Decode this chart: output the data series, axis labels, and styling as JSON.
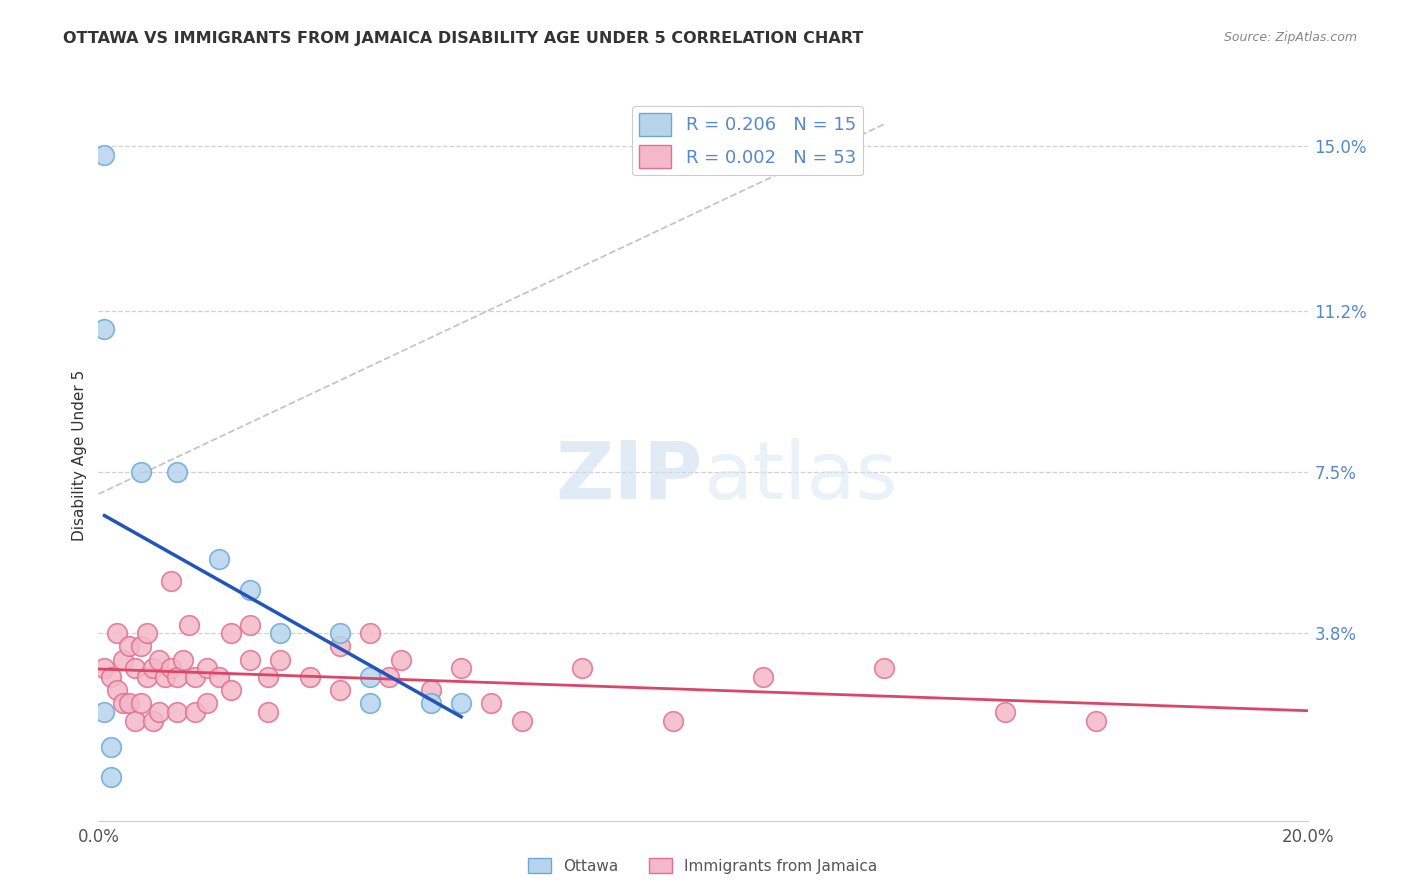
{
  "title": "OTTAWA VS IMMIGRANTS FROM JAMAICA DISABILITY AGE UNDER 5 CORRELATION CHART",
  "source": "Source: ZipAtlas.com",
  "ylabel": "Disability Age Under 5",
  "xlim": [
    0.0,
    0.2
  ],
  "ylim": [
    -0.005,
    0.163
  ],
  "xticks": [
    0.0,
    0.2
  ],
  "xticklabels": [
    "0.0%",
    "20.0%"
  ],
  "ytick_positions": [
    0.038,
    0.075,
    0.112,
    0.15
  ],
  "ytick_labels": [
    "3.8%",
    "7.5%",
    "11.2%",
    "15.0%"
  ],
  "ottawa_color": "#b8d4ed",
  "ottawa_edge_color": "#6aaad4",
  "jamaica_color": "#f4b8c8",
  "jamaica_edge_color": "#e07090",
  "trend_ottawa_color": "#2255bb",
  "trend_jamaica_color": "#dd4466",
  "r_ottawa": 0.206,
  "n_ottawa": 15,
  "r_jamaica": 0.002,
  "n_jamaica": 53,
  "watermark_zip": "ZIP",
  "watermark_atlas": "atlas",
  "ottawa_x": [
    0.001,
    0.001,
    0.007,
    0.013,
    0.02,
    0.025,
    0.03,
    0.04,
    0.045,
    0.045,
    0.055,
    0.06,
    0.001,
    0.002,
    0.002
  ],
  "ottawa_y": [
    0.148,
    0.108,
    0.075,
    0.075,
    0.055,
    0.048,
    0.038,
    0.038,
    0.028,
    0.022,
    0.022,
    0.022,
    0.02,
    0.012,
    0.005
  ],
  "jamaica_x": [
    0.001,
    0.002,
    0.003,
    0.003,
    0.004,
    0.004,
    0.005,
    0.005,
    0.006,
    0.006,
    0.007,
    0.007,
    0.008,
    0.008,
    0.009,
    0.009,
    0.01,
    0.01,
    0.011,
    0.012,
    0.012,
    0.013,
    0.013,
    0.014,
    0.015,
    0.016,
    0.016,
    0.018,
    0.018,
    0.02,
    0.022,
    0.022,
    0.025,
    0.025,
    0.028,
    0.028,
    0.03,
    0.035,
    0.04,
    0.04,
    0.045,
    0.048,
    0.05,
    0.055,
    0.06,
    0.065,
    0.07,
    0.08,
    0.095,
    0.11,
    0.13,
    0.15,
    0.165
  ],
  "jamaica_y": [
    0.03,
    0.028,
    0.038,
    0.025,
    0.032,
    0.022,
    0.035,
    0.022,
    0.03,
    0.018,
    0.035,
    0.022,
    0.038,
    0.028,
    0.03,
    0.018,
    0.032,
    0.02,
    0.028,
    0.05,
    0.03,
    0.028,
    0.02,
    0.032,
    0.04,
    0.028,
    0.02,
    0.03,
    0.022,
    0.028,
    0.038,
    0.025,
    0.04,
    0.032,
    0.028,
    0.02,
    0.032,
    0.028,
    0.035,
    0.025,
    0.038,
    0.028,
    0.032,
    0.025,
    0.03,
    0.022,
    0.018,
    0.03,
    0.018,
    0.028,
    0.03,
    0.02,
    0.018
  ],
  "grid_color": "#cccccc",
  "spine_color": "#cccccc",
  "ytick_color": "#5588cc",
  "title_color": "#333333",
  "source_color": "#888888",
  "label_color": "#555555"
}
